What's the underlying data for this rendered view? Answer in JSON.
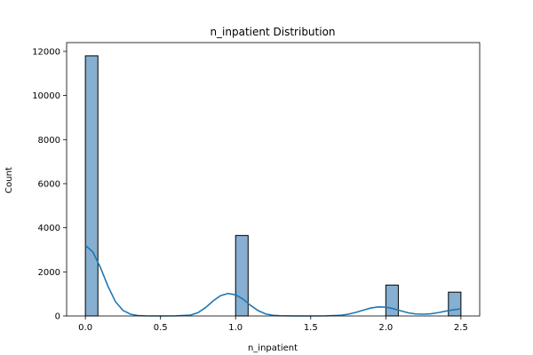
{
  "chart_data": {
    "type": "bar",
    "title": "n_inpatient Distribution",
    "xlabel": "n_inpatient",
    "ylabel": "Count",
    "xlim": [
      -0.125,
      2.625
    ],
    "ylim": [
      0,
      12400
    ],
    "xticks": [
      0.0,
      0.5,
      1.0,
      1.5,
      2.0,
      2.5
    ],
    "xtick_labels": [
      "0.0",
      "0.5",
      "1.0",
      "1.5",
      "2.0",
      "2.5"
    ],
    "yticks": [
      0,
      2000,
      4000,
      6000,
      8000,
      10000,
      12000
    ],
    "ytick_labels": [
      "0",
      "2000",
      "4000",
      "6000",
      "8000",
      "10000",
      "12000"
    ],
    "grid": false,
    "bar_color": "#86afd1",
    "edge_color": "#000000",
    "kde_color": "#1f77b4",
    "series": [
      {
        "values_kind": "histogram",
        "bars": [
          {
            "x0": 0.0,
            "x1": 0.0833,
            "count": 11800
          },
          {
            "x0": 1.0,
            "x1": 1.0833,
            "count": 3650
          },
          {
            "x0": 2.0,
            "x1": 2.0833,
            "count": 1400
          },
          {
            "x0": 2.4167,
            "x1": 2.5,
            "count": 1080
          }
        ]
      }
    ],
    "kde": {
      "x": [
        0.0,
        0.05,
        0.1,
        0.15,
        0.2,
        0.25,
        0.3,
        0.35,
        0.4,
        0.5,
        0.6,
        0.7,
        0.75,
        0.8,
        0.85,
        0.9,
        0.95,
        1.0,
        1.05,
        1.1,
        1.15,
        1.2,
        1.25,
        1.3,
        1.4,
        1.5,
        1.6,
        1.7,
        1.75,
        1.8,
        1.85,
        1.9,
        1.95,
        2.0,
        2.05,
        2.1,
        2.15,
        2.2,
        2.25,
        2.3,
        2.35,
        2.4,
        2.45,
        2.5
      ],
      "y": [
        3200,
        2900,
        2200,
        1350,
        650,
        250,
        80,
        20,
        5,
        0,
        5,
        40,
        150,
        380,
        680,
        920,
        1020,
        960,
        760,
        480,
        240,
        90,
        30,
        10,
        0,
        0,
        5,
        30,
        80,
        160,
        260,
        360,
        410,
        400,
        330,
        230,
        140,
        90,
        80,
        100,
        150,
        220,
        280,
        320
      ]
    }
  }
}
